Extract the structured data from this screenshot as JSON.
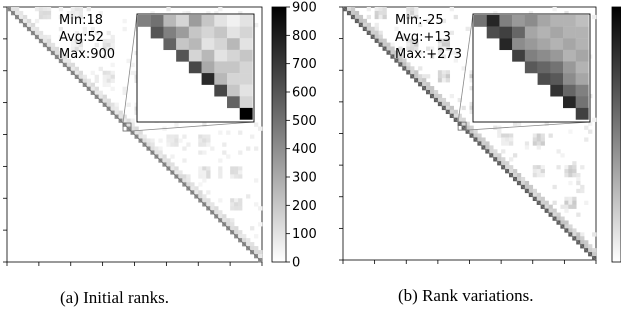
{
  "chart_data": [
    {
      "type": "heatmap",
      "caption": "(a) Initial ranks.",
      "stats": {
        "min": "Min:18",
        "avg": "Avg:52",
        "max": "Max:900"
      },
      "colorbar": {
        "ticks": [
          900,
          800,
          700,
          600,
          500,
          400,
          300,
          200,
          100,
          0
        ],
        "min": 0,
        "max": 900,
        "colormap": "grayscale (white=0, black=max)"
      },
      "matrix_shape": "upper-triangular",
      "inset": {
        "values": [
          [
            450
          ],
          [
            500,
            600
          ],
          [
            250,
            450,
            550
          ],
          [
            150,
            350,
            200,
            600
          ],
          [
            350,
            200,
            250,
            150,
            650
          ],
          [
            200,
            150,
            100,
            250,
            300,
            750
          ],
          [
            100,
            200,
            150,
            100,
            200,
            250,
            650
          ],
          [
            50,
            100,
            250,
            150,
            200,
            150,
            200,
            550
          ],
          [
            100,
            150,
            100,
            200,
            150,
            150,
            100,
            150,
            900
          ]
        ]
      }
    },
    {
      "type": "heatmap",
      "caption": "(b) Rank variations.",
      "stats": {
        "min": "Min:-25",
        "avg": "Avg:+13",
        "max": "Max:+273"
      },
      "colorbar": {
        "ticks": [],
        "colormap": "grayscale"
      },
      "matrix_shape": "upper-triangular",
      "inset": {
        "values": [
          [
            0.55
          ],
          [
            0.85,
            0.7
          ],
          [
            0.5,
            0.75,
            0.85
          ],
          [
            0.4,
            0.6,
            0.45,
            0.75
          ],
          [
            0.45,
            0.35,
            0.4,
            0.5,
            0.65
          ],
          [
            0.35,
            0.3,
            0.35,
            0.45,
            0.6,
            0.7
          ],
          [
            0.3,
            0.35,
            0.3,
            0.4,
            0.55,
            0.65,
            0.8
          ],
          [
            0.3,
            0.3,
            0.35,
            0.3,
            0.4,
            0.45,
            0.6,
            0.85
          ],
          [
            0.25,
            0.3,
            0.3,
            0.35,
            0.3,
            0.35,
            0.5,
            0.55,
            0.75
          ]
        ]
      }
    }
  ]
}
